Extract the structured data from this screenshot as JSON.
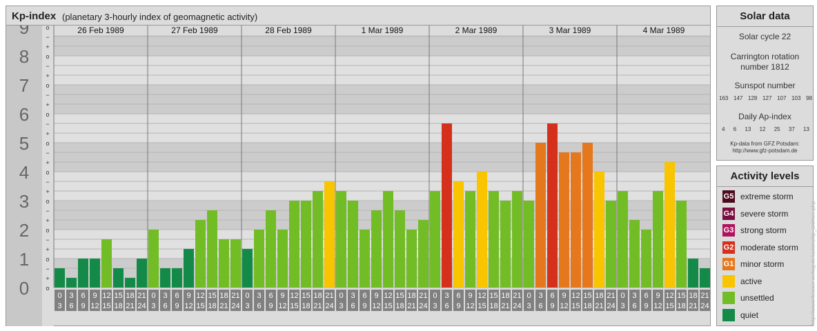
{
  "header": {
    "title": "Kp-index",
    "subtitle": "(planetary 3-hourly index of geomagnetic activity)"
  },
  "chart_data": {
    "type": "bar",
    "ylim": [
      0,
      9
    ],
    "y_ticks": [
      "0",
      "1",
      "2",
      "3",
      "4",
      "5",
      "6",
      "7",
      "8",
      "9"
    ],
    "minor_tick_labels": [
      "+",
      "−",
      "o"
    ],
    "days": [
      "26 Feb 1989",
      "27 Feb 1989",
      "28 Feb 1989",
      "1 Mar 1989",
      "2 Mar 1989",
      "3 Mar 1989",
      "4 Mar 1989"
    ],
    "hour_starts": [
      "0",
      "3",
      "6",
      "9",
      "12",
      "15",
      "18",
      "21"
    ],
    "hour_ends": [
      "3",
      "6",
      "9",
      "12",
      "15",
      "18",
      "21",
      "24"
    ],
    "values": [
      0.667,
      0.333,
      1.0,
      1.0,
      1.667,
      0.667,
      0.333,
      1.0,
      2.0,
      0.667,
      0.667,
      1.333,
      2.333,
      2.667,
      1.667,
      1.667,
      1.333,
      2.0,
      2.667,
      2.0,
      3.0,
      3.0,
      3.333,
      3.667,
      3.333,
      3.0,
      2.0,
      2.667,
      3.333,
      2.667,
      2.0,
      2.333,
      3.333,
      5.667,
      3.667,
      3.333,
      4.0,
      3.333,
      3.0,
      3.333,
      3.0,
      5.0,
      5.667,
      4.667,
      4.667,
      5.0,
      4.0,
      3.0,
      3.333,
      2.333,
      2.0,
      3.333,
      4.333,
      3.0,
      1.0,
      0.667
    ],
    "colors": {
      "quiet": "#138a47",
      "unsettled": "#72bd25",
      "active": "#f9c400",
      "minor_storm": "#e5781d",
      "moderate_storm": "#d4301c",
      "strong_storm": "#b1125d",
      "severe_storm": "#7b0e3e",
      "extreme_storm": "#4d0a1f"
    }
  },
  "solar_data": {
    "title": "Solar data",
    "cycle": "Solar cycle 22",
    "carrington_line1": "Carrington rotation",
    "carrington_line2": "number 1812",
    "sunspot_label": "Sunspot number",
    "sunspot_values": [
      "163",
      "147",
      "128",
      "127",
      "107",
      "103",
      "98"
    ],
    "ap_label": "Daily Ap-index",
    "ap_values": [
      "4",
      "6",
      "13",
      "12",
      "25",
      "37",
      "13"
    ],
    "source_line1": "Kp-data from GFZ Potsdam:",
    "source_line2": "http://www.gfz-potsdam.de"
  },
  "activity_levels": {
    "title": "Activity levels",
    "items": [
      {
        "code": "G5",
        "label": "extreme storm",
        "color": "#4d0a1f"
      },
      {
        "code": "G4",
        "label": "severe storm",
        "color": "#7b0e3e"
      },
      {
        "code": "G3",
        "label": "strong storm",
        "color": "#b1125d"
      },
      {
        "code": "G2",
        "label": "moderate storm",
        "color": "#d4301c"
      },
      {
        "code": "G1",
        "label": "minor storm",
        "color": "#e5781d"
      },
      {
        "code": "",
        "label": "active",
        "color": "#f9c400"
      },
      {
        "code": "",
        "label": "unsettled",
        "color": "#72bd25"
      },
      {
        "code": "",
        "label": "quiet",
        "color": "#138a47"
      }
    ]
  },
  "footer_url": "http://www.fleuser-verlag.de/aurora/kp_archive.php"
}
